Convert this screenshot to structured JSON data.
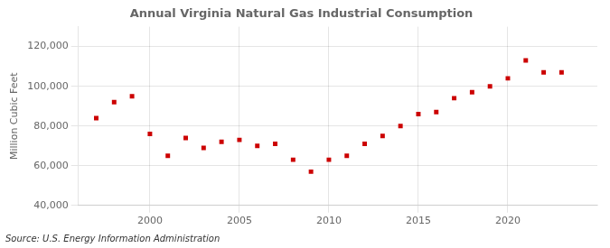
{
  "chart_data": {
    "type": "scatter",
    "title": "Annual Virginia Natural Gas Industrial Consumption",
    "ylabel": "Million Cubic Feet",
    "annotations": [
      "Source: U.S. Energy Information Administration"
    ],
    "x": [
      1997,
      1998,
      1999,
      2000,
      2001,
      2002,
      2003,
      2004,
      2005,
      2006,
      2007,
      2008,
      2009,
      2010,
      2011,
      2012,
      2013,
      2014,
      2015,
      2016,
      2017,
      2018,
      2019,
      2020,
      2021,
      2022,
      2023
    ],
    "values": [
      84000,
      92000,
      95000,
      76000,
      65000,
      74000,
      69000,
      72000,
      73000,
      70000,
      71000,
      63000,
      57000,
      63000,
      65000,
      71000,
      75000,
      80000,
      86000,
      87000,
      94000,
      97000,
      100000,
      104000,
      113000,
      107000,
      107000
    ],
    "color": "#cc0000",
    "marker": "square",
    "xlim": [
      1996,
      2025
    ],
    "xticks": [
      2000,
      2005,
      2010,
      2015,
      2020
    ],
    "ylim": [
      40000,
      130000
    ],
    "yticks": [
      {
        "value": 40000,
        "label": "40,000"
      },
      {
        "value": 60000,
        "label": "60,000"
      },
      {
        "value": 80000,
        "label": "80,000"
      },
      {
        "value": 100000,
        "label": "100,000"
      },
      {
        "value": 120000,
        "label": "120,000"
      }
    ],
    "grid": true
  }
}
